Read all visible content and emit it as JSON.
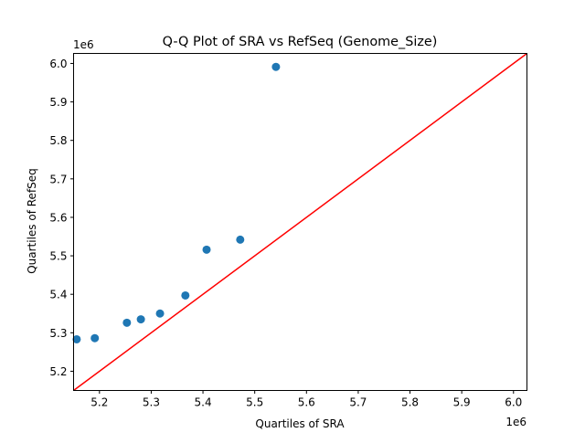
{
  "chart_data": {
    "type": "scatter",
    "title": "Q-Q Plot of SRA vs RefSeq (Genome_Size)",
    "xlabel": "Quartiles of SRA",
    "ylabel": "Quartiles of RefSeq",
    "x_offset_label": "1e6",
    "y_offset_label": "1e6",
    "xlim": [
      5150000,
      6026000
    ],
    "ylim": [
      5150000,
      6026000
    ],
    "x_ticks": [
      5200000,
      5300000,
      5400000,
      5500000,
      5600000,
      5700000,
      5800000,
      5900000,
      6000000
    ],
    "x_tick_labels": [
      "5.2",
      "5.3",
      "5.4",
      "5.5",
      "5.6",
      "5.7",
      "5.8",
      "5.9",
      "6.0"
    ],
    "y_ticks": [
      5200000,
      5300000,
      5400000,
      5500000,
      5600000,
      5700000,
      5800000,
      5900000,
      6000000
    ],
    "y_tick_labels": [
      "5.2",
      "5.3",
      "5.4",
      "5.5",
      "5.6",
      "5.7",
      "5.8",
      "5.9",
      "6.0"
    ],
    "grid": false,
    "series": [
      {
        "x": [
          5156000,
          5191000,
          5253000,
          5280000,
          5317000,
          5366000,
          5407000,
          5472000,
          5541000
        ],
        "y": [
          5283000,
          5286000,
          5326000,
          5335000,
          5350000,
          5397000,
          5516000,
          5542000,
          5991000
        ],
        "color": "#1f77b4"
      }
    ],
    "reference_line": {
      "type": "y=x",
      "color": "#ff0000"
    }
  }
}
